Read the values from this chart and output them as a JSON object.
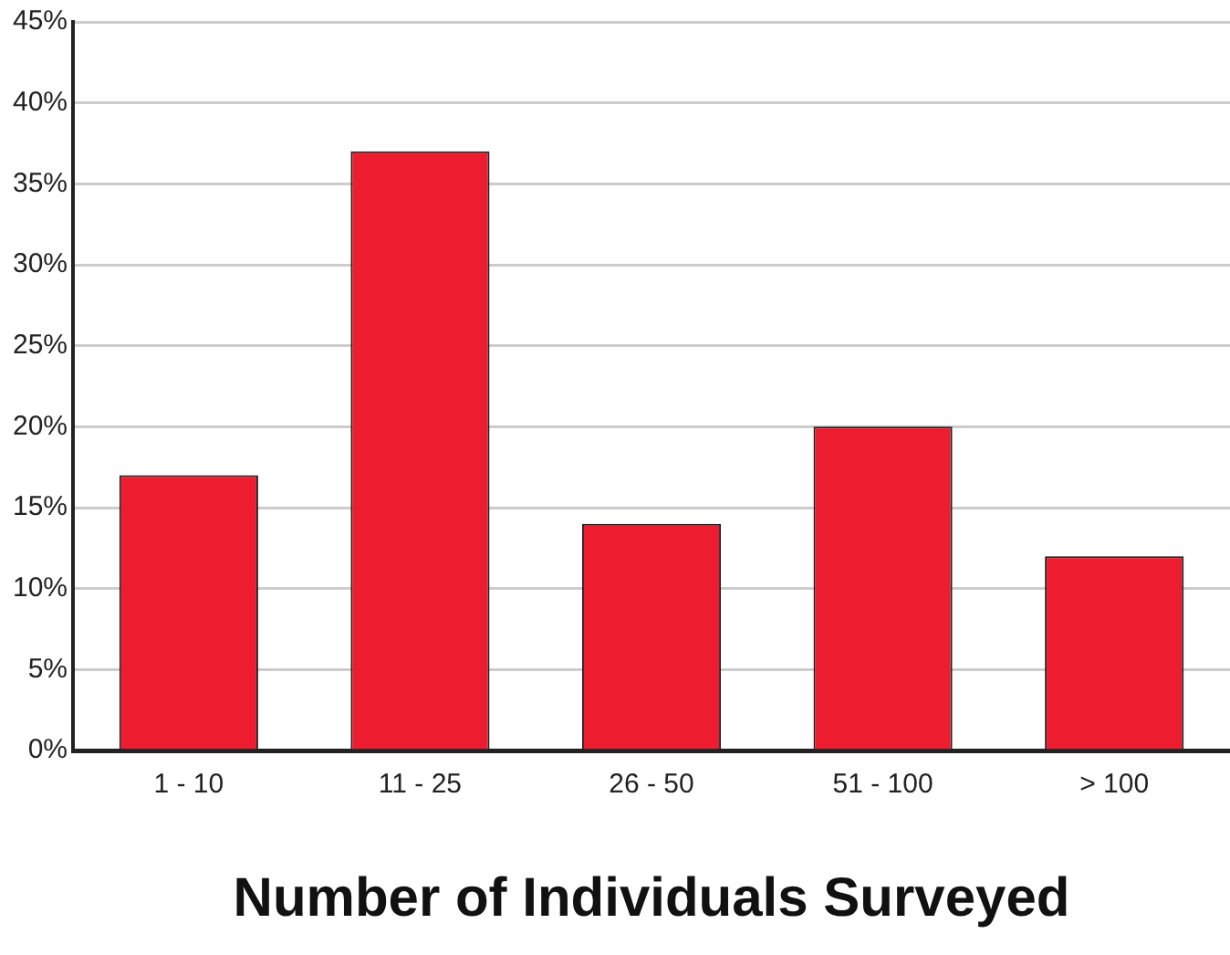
{
  "chart_data": {
    "type": "bar",
    "xlabel": "Number of Individuals Surveyed",
    "categories": [
      "1 - 10",
      "11 - 25",
      "26 - 50",
      "51 - 100",
      "> 100"
    ],
    "values": [
      17,
      37,
      14,
      20,
      12
    ],
    "color": "#ed1c2e",
    "ylim": [
      0,
      45
    ],
    "yticks": [
      {
        "value": 0,
        "label": "0%"
      },
      {
        "value": 5,
        "label": "5%"
      },
      {
        "value": 10,
        "label": "10%"
      },
      {
        "value": 15,
        "label": "15%"
      },
      {
        "value": 20,
        "label": "20%"
      },
      {
        "value": 25,
        "label": "25%"
      },
      {
        "value": 30,
        "label": "30%"
      },
      {
        "value": 35,
        "label": "35%"
      },
      {
        "value": 40,
        "label": "40%"
      },
      {
        "value": 45,
        "label": "45%"
      }
    ],
    "grid": "y",
    "legend": false
  }
}
